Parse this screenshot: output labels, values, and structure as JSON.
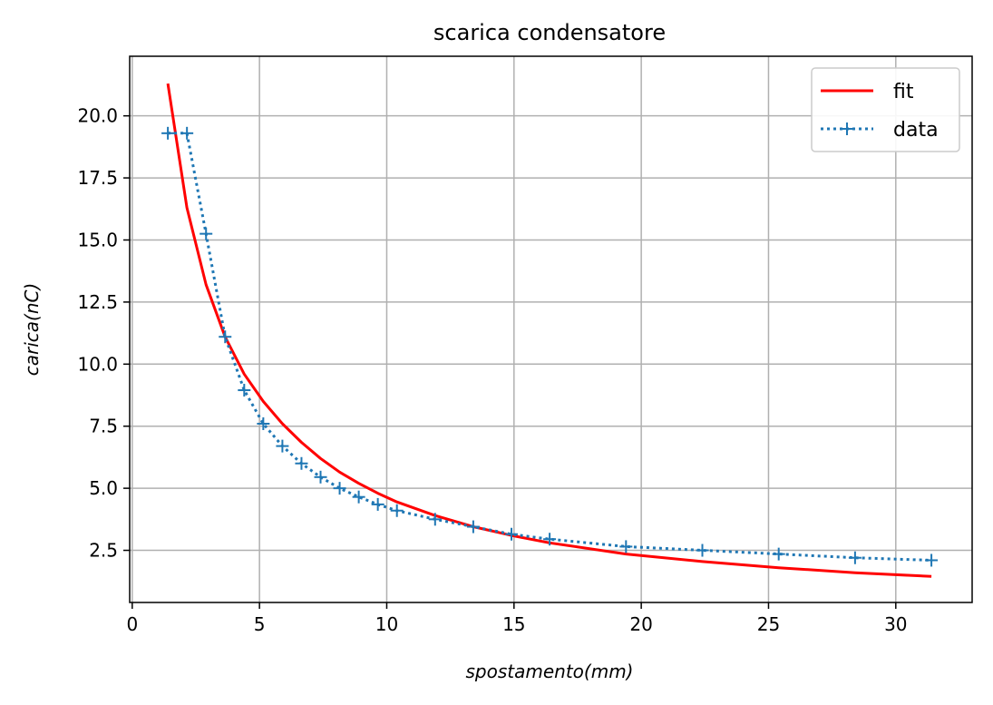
{
  "chart_data": {
    "type": "line",
    "title": "scarica condensatore",
    "xlabel": "spostamento(mm)",
    "ylabel": "carica(nC)",
    "xlim": [
      -0.1,
      33
    ],
    "ylim": [
      0.4,
      22.4
    ],
    "xticks": [
      0,
      5,
      10,
      15,
      20,
      25,
      30
    ],
    "xtick_labels": [
      "0",
      "5",
      "10",
      "15",
      "20",
      "25",
      "30"
    ],
    "yticks": [
      2.5,
      5.0,
      7.5,
      10.0,
      12.5,
      15.0,
      17.5,
      20.0
    ],
    "ytick_labels": [
      "2.5",
      "5.0",
      "7.5",
      "10.0",
      "12.5",
      "15.0",
      "17.5",
      "20.0"
    ],
    "grid": true,
    "legend_position": "top-right",
    "series": [
      {
        "name": "fit",
        "style": "solid",
        "color": "#ff0000",
        "x": [
          1.4,
          2.15,
          2.9,
          3.65,
          4.4,
          5.15,
          5.9,
          6.65,
          7.4,
          8.15,
          8.9,
          9.65,
          10.4,
          11.9,
          13.4,
          14.9,
          16.4,
          19.4,
          22.4,
          25.4,
          28.4,
          31.4
        ],
        "y": [
          21.3,
          16.3,
          13.2,
          11.1,
          9.6,
          8.5,
          7.6,
          6.85,
          6.2,
          5.65,
          5.2,
          4.8,
          4.45,
          3.9,
          3.45,
          3.1,
          2.8,
          2.35,
          2.05,
          1.8,
          1.6,
          1.45
        ]
      },
      {
        "name": "data",
        "style": "dotted",
        "marker": "+",
        "color": "#1f77b4",
        "x": [
          1.4,
          2.15,
          2.9,
          3.65,
          4.4,
          5.15,
          5.9,
          6.65,
          7.4,
          8.15,
          8.9,
          9.65,
          10.4,
          11.9,
          13.4,
          14.9,
          16.4,
          19.4,
          22.4,
          25.4,
          28.4,
          31.4
        ],
        "y": [
          19.3,
          19.3,
          15.25,
          11.1,
          8.95,
          7.6,
          6.7,
          6.0,
          5.45,
          5.0,
          4.65,
          4.35,
          4.1,
          3.75,
          3.45,
          3.15,
          2.95,
          2.65,
          2.5,
          2.35,
          2.2,
          2.1
        ]
      }
    ]
  }
}
